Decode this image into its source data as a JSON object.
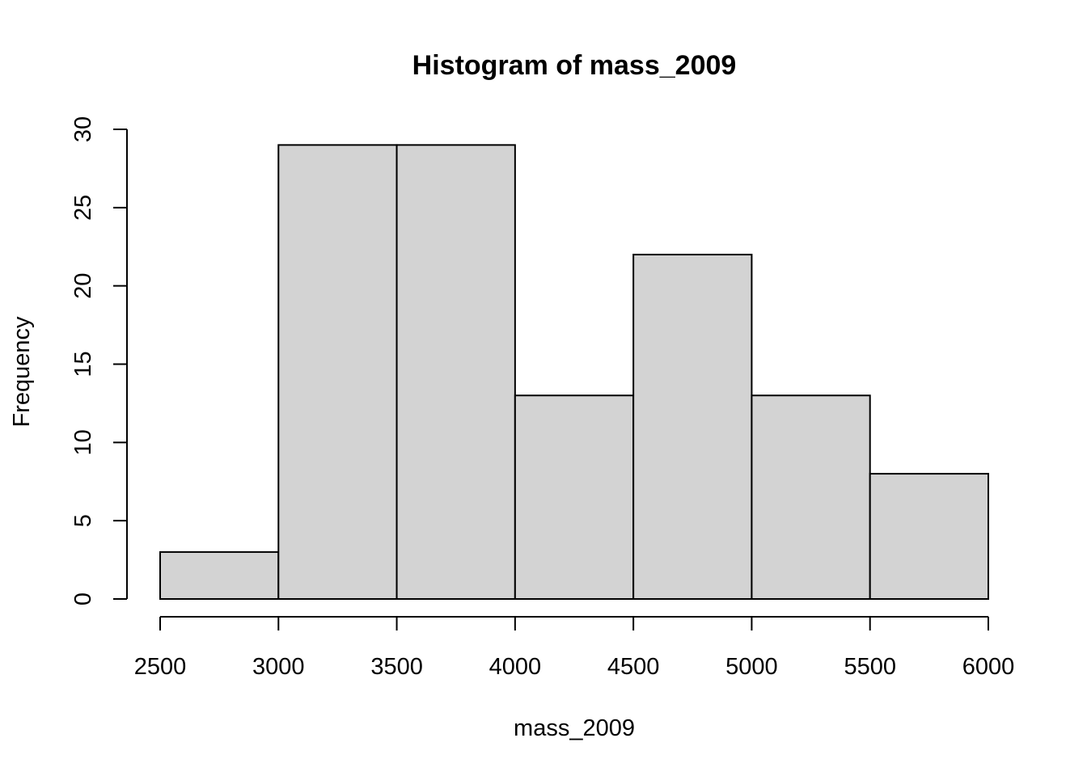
{
  "chart_data": {
    "type": "bar",
    "title": "Histogram of mass_2009",
    "xlabel": "mass_2009",
    "ylabel": "Frequency",
    "bins": [
      {
        "from": 2500,
        "to": 3000,
        "count": 3
      },
      {
        "from": 3000,
        "to": 3500,
        "count": 29
      },
      {
        "from": 3500,
        "to": 4000,
        "count": 29
      },
      {
        "from": 4000,
        "to": 4500,
        "count": 13
      },
      {
        "from": 4500,
        "to": 5000,
        "count": 22
      },
      {
        "from": 5000,
        "to": 5500,
        "count": 13
      },
      {
        "from": 5500,
        "to": 6000,
        "count": 8
      }
    ],
    "xlim": [
      2500,
      6000
    ],
    "ylim": [
      0,
      30
    ],
    "x_ticks": [
      2500,
      3000,
      3500,
      4000,
      4500,
      5000,
      5500,
      6000
    ],
    "y_ticks": [
      0,
      5,
      10,
      15,
      20,
      25,
      30
    ],
    "grid": false,
    "colors": {
      "bar_fill": "#d3d3d3",
      "bar_stroke": "#000000"
    }
  }
}
